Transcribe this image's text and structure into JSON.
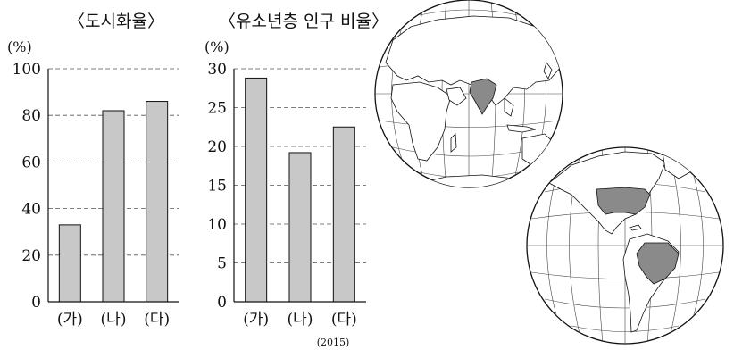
{
  "chart_data": [
    {
      "type": "bar",
      "title": "〈도시화율〉",
      "unit_label": "(%)",
      "categories": [
        "(가)",
        "(나)",
        "(다)"
      ],
      "values": [
        33,
        82,
        86
      ],
      "ylim": [
        0,
        100
      ],
      "yticks": [
        0,
        20,
        40,
        60,
        80,
        100
      ],
      "grid": "dashed horizontal",
      "bar_color": "#c8c8c8"
    },
    {
      "type": "bar",
      "title": "〈유소년층 인구 비율〉",
      "unit_label": "(%)",
      "categories": [
        "(가)",
        "(나)",
        "(다)"
      ],
      "values": [
        28.8,
        19.2,
        22.5
      ],
      "ylim": [
        0,
        30
      ],
      "yticks": [
        0,
        5,
        10,
        15,
        20,
        25,
        30
      ],
      "grid": "dashed horizontal",
      "bar_color": "#c8c8c8",
      "note": "(2015)"
    }
  ],
  "maps": {
    "globe_east": {
      "highlighted": [
        "India"
      ]
    },
    "globe_west": {
      "highlighted": [
        "United States",
        "Brazil"
      ]
    },
    "land_color": "#ffffff",
    "highlight_color": "#8a8a8a"
  }
}
